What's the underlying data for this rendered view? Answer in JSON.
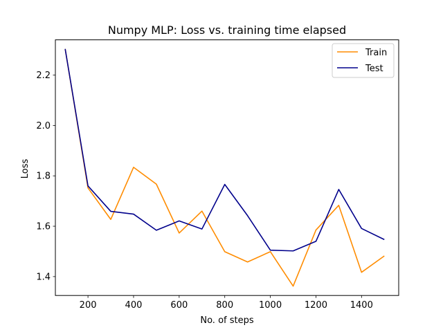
{
  "chart_data": {
    "type": "line",
    "title": "Numpy MLP: Loss vs. training time elapsed",
    "xlabel": "No. of steps",
    "ylabel": "Loss",
    "xlim": [
      57,
      1563
    ],
    "ylim": [
      1.325,
      2.34
    ],
    "xticks": [
      200,
      400,
      600,
      800,
      1000,
      1200,
      1400
    ],
    "yticks": [
      1.4,
      1.6,
      1.8,
      2.0,
      2.2
    ],
    "ytick_labels": [
      "1.4",
      "1.6",
      "1.8",
      "2.0",
      "2.2"
    ],
    "grid": false,
    "legend_position": "top-right",
    "x": [
      100,
      200,
      300,
      400,
      500,
      600,
      700,
      800,
      900,
      1000,
      1100,
      1200,
      1300,
      1400,
      1500
    ],
    "series": [
      {
        "name": "Train",
        "color": "#ff8c00",
        "values": [
          2.304,
          1.752,
          1.627,
          1.834,
          1.767,
          1.573,
          1.66,
          1.499,
          1.458,
          1.499,
          1.362,
          1.585,
          1.683,
          1.417,
          1.482
        ]
      },
      {
        "name": "Test",
        "color": "#00008b",
        "values": [
          2.304,
          1.76,
          1.659,
          1.648,
          1.584,
          1.621,
          1.589,
          1.766,
          1.642,
          1.505,
          1.502,
          1.54,
          1.746,
          1.591,
          1.547
        ]
      }
    ]
  }
}
